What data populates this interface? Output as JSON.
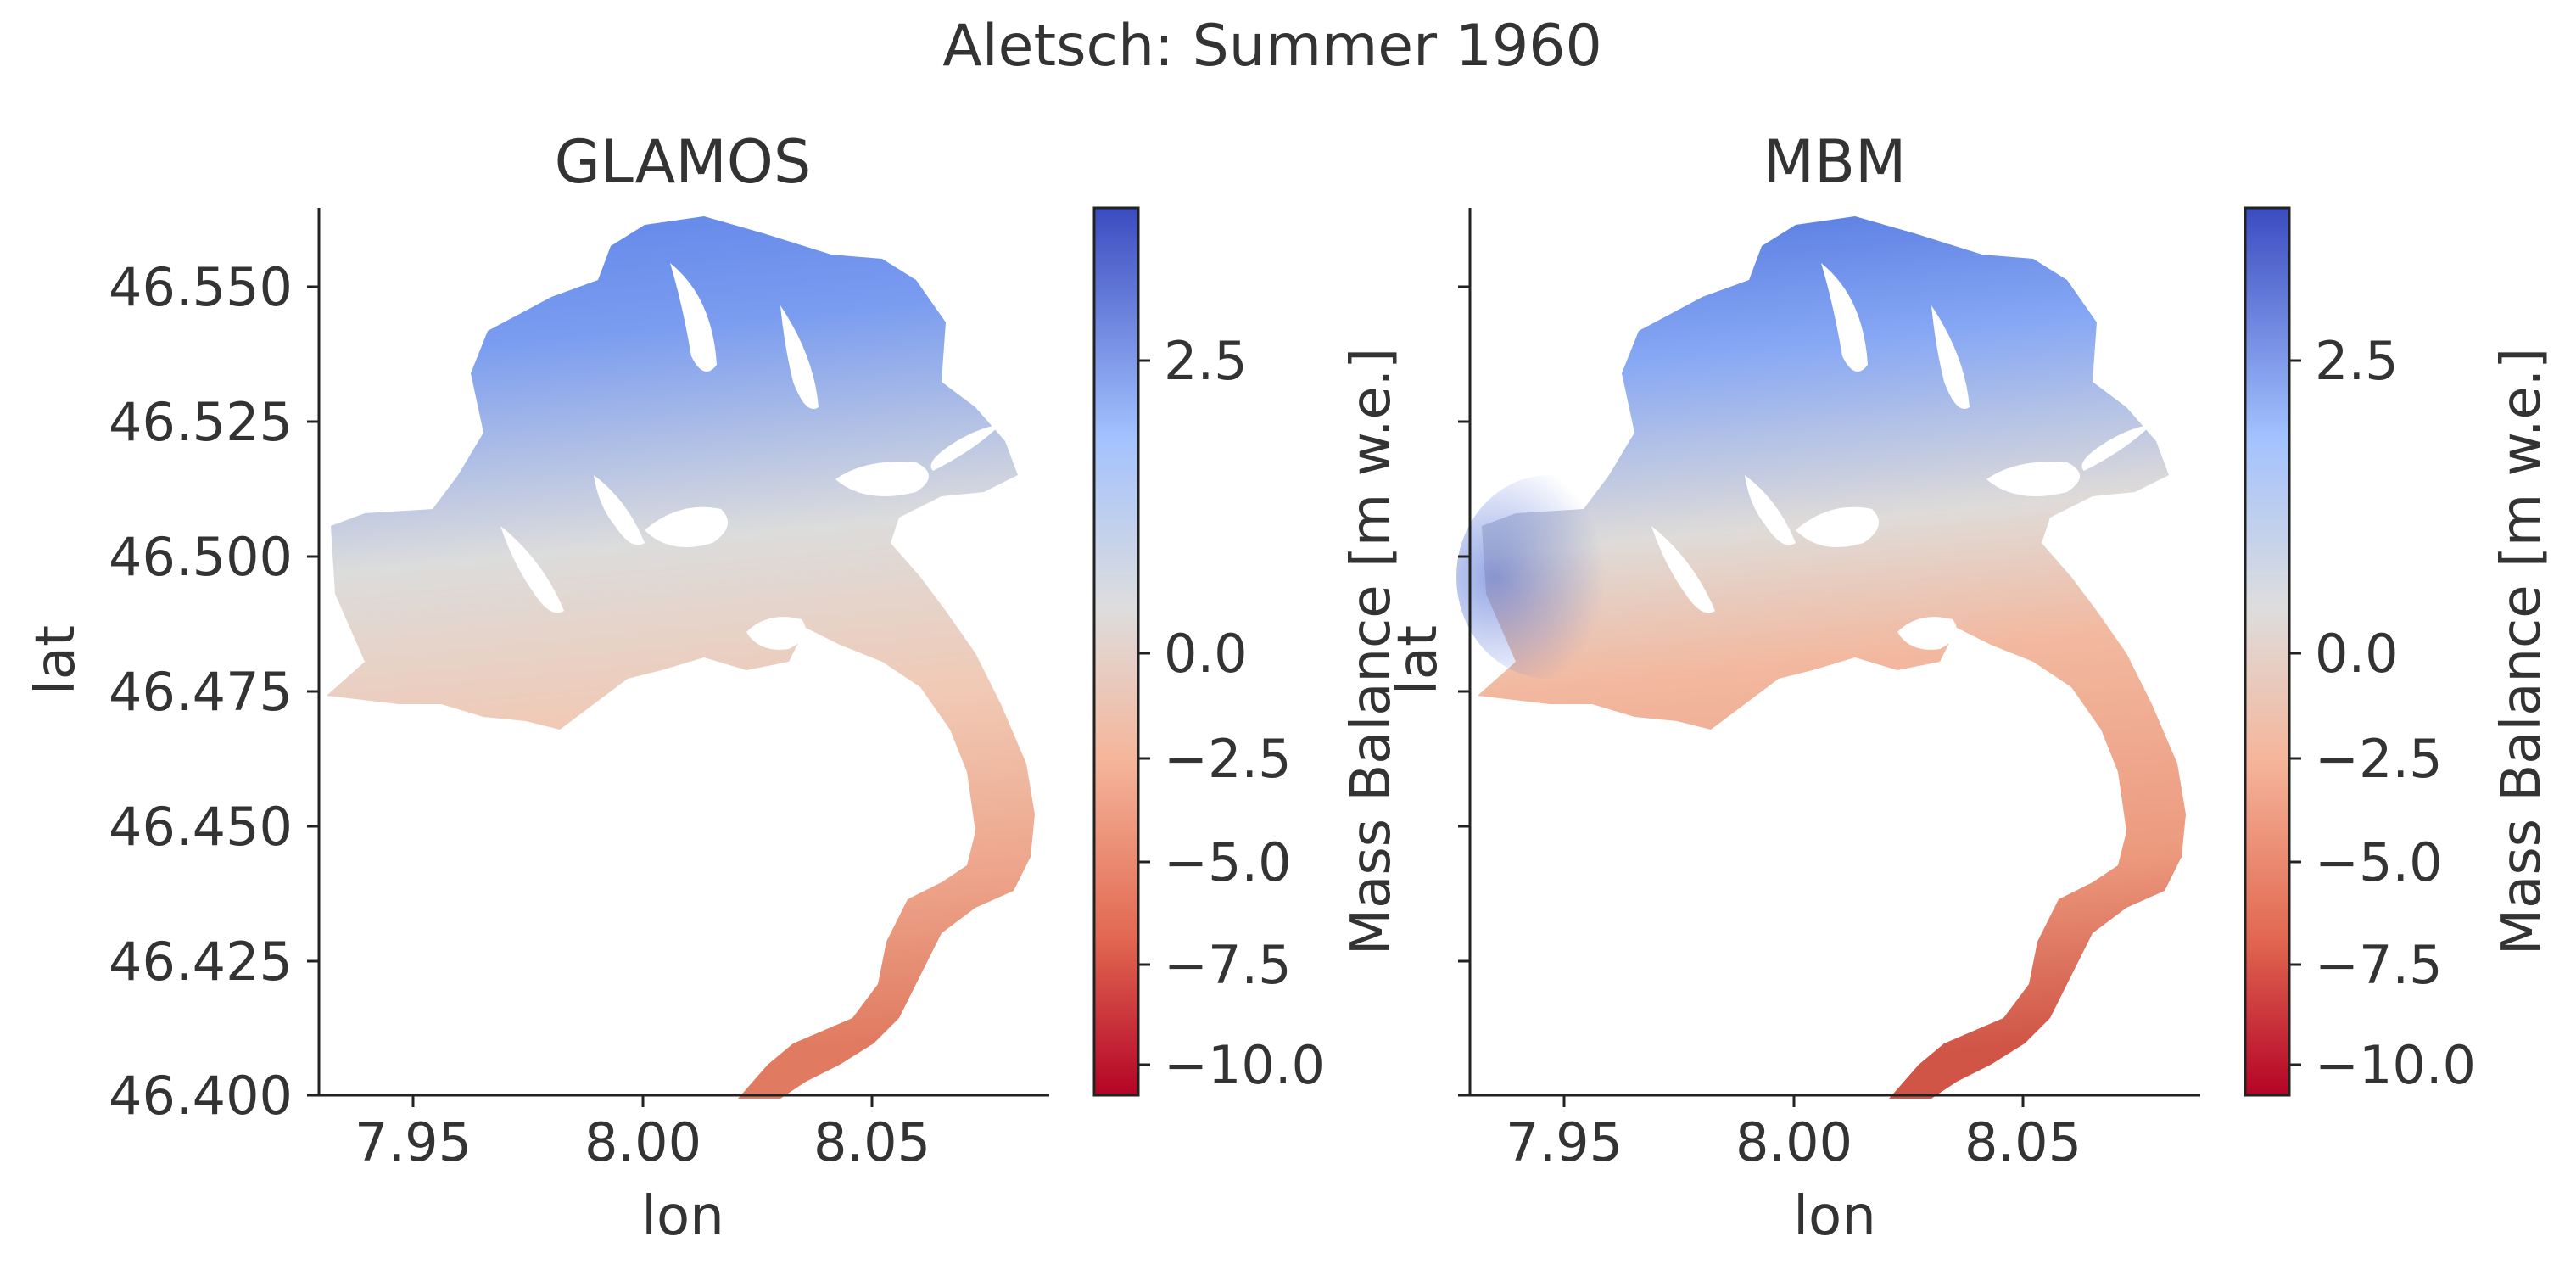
{
  "figure": {
    "suptitle": "Aletsch: Summer 1960"
  },
  "chart_data": [
    {
      "type": "heatmap",
      "title": "GLAMOS",
      "xlabel": "lon",
      "ylabel": "lat",
      "xlim": [
        7.93,
        8.087
      ],
      "ylim": [
        46.4,
        46.565
      ],
      "xticks": [
        7.95,
        8.0,
        8.05
      ],
      "xtick_labels": [
        "7.95",
        "8.00",
        "8.05"
      ],
      "yticks": [
        46.4,
        46.425,
        46.45,
        46.475,
        46.5,
        46.525,
        46.55
      ],
      "ytick_labels": [
        "46.400",
        "46.425",
        "46.450",
        "46.475",
        "46.500",
        "46.525",
        "46.550"
      ],
      "colorbar": {
        "label": "Mass Balance [m w.e.]",
        "cmap": "coolwarm_r",
        "range": [
          -11.0,
          3.75
        ],
        "ticks": [
          2.5,
          0.0,
          -2.5,
          -5.0,
          -7.5,
          -10.0
        ],
        "tick_labels": [
          "2.5",
          "0.0",
          "−2.5",
          "−5.0",
          "−7.5",
          "−10.0"
        ]
      },
      "value_range_observed": [
        -7.5,
        2.7
      ],
      "grid": false
    },
    {
      "type": "heatmap",
      "title": "MBM",
      "xlabel": "lon",
      "ylabel": "lat",
      "xlim": [
        7.93,
        8.087
      ],
      "ylim": [
        46.4,
        46.565
      ],
      "xticks": [
        7.95,
        8.0,
        8.05
      ],
      "xtick_labels": [
        "7.95",
        "8.00",
        "8.05"
      ],
      "yticks": [
        46.4,
        46.425,
        46.45,
        46.475,
        46.5,
        46.525,
        46.55
      ],
      "ytick_labels": [],
      "colorbar": {
        "label": "Mass Balance [m w.e.]",
        "cmap": "coolwarm_r",
        "range": [
          -11.0,
          3.75
        ],
        "ticks": [
          2.5,
          0.0,
          -2.5,
          -5.0,
          -7.5,
          -10.0
        ],
        "tick_labels": [
          "2.5",
          "0.0",
          "−2.5",
          "−5.0",
          "−7.5",
          "−10.0"
        ]
      },
      "value_range_observed": [
        -8.5,
        3.5
      ],
      "grid": false
    }
  ]
}
